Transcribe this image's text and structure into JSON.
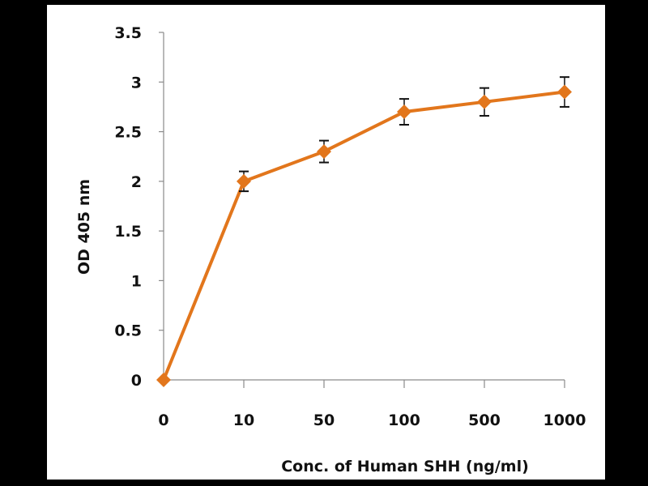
{
  "chart_data": {
    "type": "line",
    "title": "",
    "xlabel": "Conc. of  Human SHH (ng/ml)",
    "ylabel": "OD  405 nm",
    "categories": [
      "0",
      "10",
      "50",
      "100",
      "500",
      "1000"
    ],
    "series": [
      {
        "name": "OD 405 nm",
        "values": [
          0,
          2.0,
          2.3,
          2.7,
          2.8,
          2.9
        ],
        "errors": [
          0,
          0.1,
          0.11,
          0.13,
          0.14,
          0.15
        ],
        "color": "#E2761C",
        "marker": "diamond"
      }
    ],
    "ylim": [
      0,
      3.5
    ],
    "yticks": [
      "0",
      "0.5",
      "1",
      "1.5",
      "2",
      "2.5",
      "3",
      "3.5"
    ],
    "grid": false,
    "legend": "none"
  }
}
